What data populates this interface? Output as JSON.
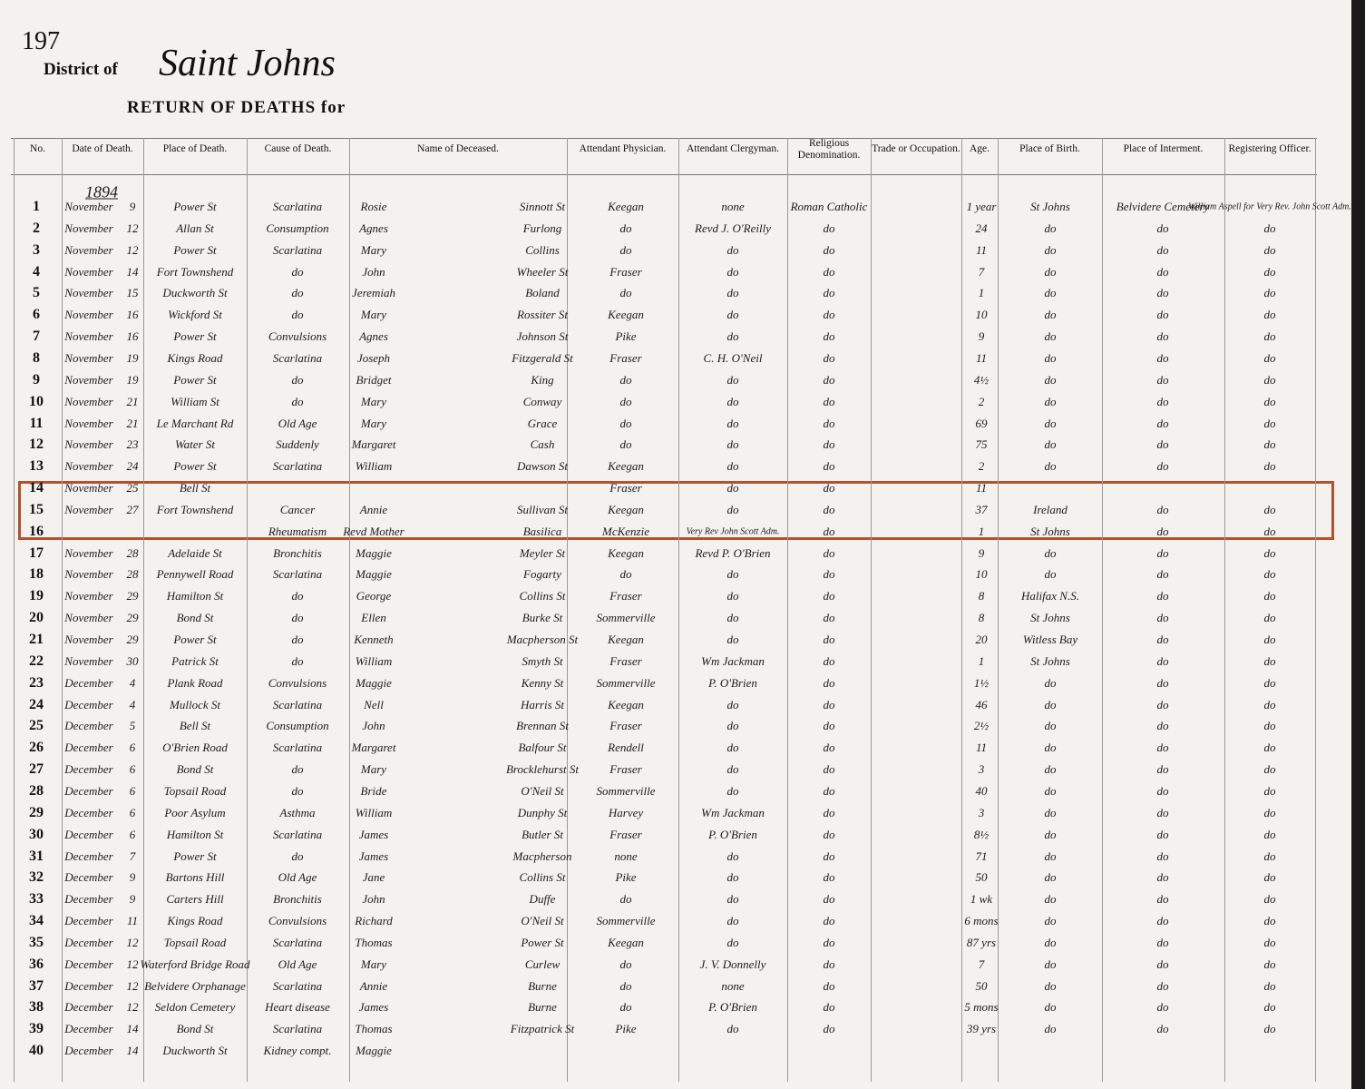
{
  "header": {
    "page_number": "197",
    "district_label": "District of",
    "district": "Saint Johns",
    "title": "RETURN OF DEATHS for"
  },
  "table": {
    "columns": [
      "No.",
      "Date of Death.",
      "Place of Death.",
      "Cause of Death.",
      "Name of Deceased.",
      "Attendant Physician.",
      "Attendant Clergyman.",
      "Religious Denomination.",
      "Trade or Occupation.",
      "Age.",
      "Place of Birth.",
      "Place of Interment.",
      "Registering Officer."
    ],
    "year": "1894",
    "rows": [
      [
        "1",
        "November",
        "9",
        "Power St",
        "Scarlatina",
        "Rosie",
        "Sinnott St",
        "Keegan",
        "none",
        "Roman Catholic",
        null,
        "1 year",
        "St Johns",
        "Belvidere Cemetery",
        "William Aspell for Very Rev. John Scott Adm."
      ],
      [
        "2",
        "November",
        "12",
        "Allan St",
        "Consumption",
        "Agnes",
        "Furlong",
        "do",
        "Revd J. O'Reilly",
        "do",
        null,
        "24",
        "do",
        "do",
        "do"
      ],
      [
        "3",
        "November",
        "12",
        "Power St",
        "Scarlatina",
        "Mary",
        "Collins",
        "do",
        "do",
        "do",
        null,
        "11",
        "do",
        "do",
        "do"
      ],
      [
        "4",
        "November",
        "14",
        "Fort Townshend",
        "do",
        "John",
        "Wheeler St",
        "Fraser",
        "do",
        "do",
        null,
        "7",
        "do",
        "do",
        "do"
      ],
      [
        "5",
        "November",
        "15",
        "Duckworth St",
        "do",
        "Jeremiah",
        "Boland",
        "do",
        "do",
        "do",
        null,
        "1",
        "do",
        "do",
        "do"
      ],
      [
        "6",
        "November",
        "16",
        "Wickford St",
        "do",
        "Mary",
        "Rossiter St",
        "Keegan",
        "do",
        "do",
        null,
        "10",
        "do",
        "do",
        "do"
      ],
      [
        "7",
        "November",
        "16",
        "Power St",
        "Convulsions",
        "Agnes",
        "Johnson St",
        "Pike",
        "do",
        "do",
        null,
        "9",
        "do",
        "do",
        "do"
      ],
      [
        "8",
        "November",
        "19",
        "Kings Road",
        "Scarlatina",
        "Joseph",
        "Fitzgerald St",
        "Fraser",
        "C. H. O'Neil",
        "do",
        null,
        "11",
        "do",
        "do",
        "do"
      ],
      [
        "9",
        "November",
        "19",
        "Power St",
        "do",
        "Bridget",
        "King",
        "do",
        "do",
        "do",
        null,
        "4½",
        "do",
        "do",
        "do"
      ],
      [
        "10",
        "November",
        "21",
        "William St",
        "do",
        "Mary",
        "Conway",
        "do",
        "do",
        "do",
        null,
        "2",
        "do",
        "do",
        "do"
      ],
      [
        "11",
        "November",
        "21",
        "Le Marchant Rd",
        "Old Age",
        "Mary",
        "Grace",
        "do",
        "do",
        "do",
        null,
        "69",
        "do",
        "do",
        "do"
      ],
      [
        "12",
        "November",
        "23",
        "Water St",
        "Suddenly",
        "Margaret",
        "Cash",
        "do",
        "do",
        "do",
        null,
        "75",
        "do",
        "do",
        "do"
      ],
      [
        "13",
        "November",
        "24",
        "Power St",
        "Scarlatina",
        "William",
        "Dawson St",
        "Keegan",
        "do",
        "do",
        null,
        "2",
        "do",
        "do",
        "do"
      ],
      [
        "14",
        "November",
        "25",
        "Bell St",
        null,
        null,
        null,
        "Fraser",
        "do",
        "do",
        null,
        "11",
        null,
        null,
        null
      ],
      [
        "15",
        "November",
        "27",
        "Fort Townshend",
        "Cancer",
        "Annie",
        "Sullivan St",
        "Keegan",
        "do",
        "do",
        null,
        "37",
        "Ireland",
        "do",
        "do"
      ],
      [
        "16",
        null,
        null,
        null,
        "Rheumatism",
        "Revd Mother",
        "Basilica",
        "McKenzie",
        "Very Rev John Scott Adm.",
        "do",
        null,
        "1",
        "St Johns",
        "do",
        "do"
      ],
      [
        "17",
        "November",
        "28",
        "Adelaide St",
        "Bronchitis",
        "Maggie",
        "Meyler St",
        "Keegan",
        "Revd P. O'Brien",
        "do",
        null,
        "9",
        "do",
        "do",
        "do"
      ],
      [
        "18",
        "November",
        "28",
        "Pennywell Road",
        "Scarlatina",
        "Maggie",
        "Fogarty",
        "do",
        "do",
        "do",
        null,
        "10",
        "do",
        "do",
        "do"
      ],
      [
        "19",
        "November",
        "29",
        "Hamilton St",
        "do",
        "George",
        "Collins St",
        "Fraser",
        "do",
        "do",
        null,
        "8",
        "Halifax N.S.",
        "do",
        "do"
      ],
      [
        "20",
        "November",
        "29",
        "Bond St",
        "do",
        "Ellen",
        "Burke St",
        "Sommerville",
        "do",
        "do",
        null,
        "8",
        "St Johns",
        "do",
        "do"
      ],
      [
        "21",
        "November",
        "29",
        "Power St",
        "do",
        "Kenneth",
        "Macpherson St",
        "Keegan",
        "do",
        "do",
        null,
        "20",
        "Witless Bay",
        "do",
        "do"
      ],
      [
        "22",
        "November",
        "30",
        "Patrick St",
        "do",
        "William",
        "Smyth St",
        "Fraser",
        "Wm Jackman",
        "do",
        null,
        "1",
        "St Johns",
        "do",
        "do"
      ],
      [
        "23",
        "December",
        "4",
        "Plank Road",
        "Convulsions",
        "Maggie",
        "Kenny St",
        "Sommerville",
        "P. O'Brien",
        "do",
        null,
        "1½",
        "do",
        "do",
        "do"
      ],
      [
        "24",
        "December",
        "4",
        "Mullock St",
        "Scarlatina",
        "Nell",
        "Harris St",
        "Keegan",
        "do",
        "do",
        null,
        "46",
        "do",
        "do",
        "do"
      ],
      [
        "25",
        "December",
        "5",
        "Bell St",
        "Consumption",
        "John",
        "Brennan St",
        "Fraser",
        "do",
        "do",
        null,
        "2½",
        "do",
        "do",
        "do"
      ],
      [
        "26",
        "December",
        "6",
        "O'Brien Road",
        "Scarlatina",
        "Margaret",
        "Balfour St",
        "Rendell",
        "do",
        "do",
        null,
        "11",
        "do",
        "do",
        "do"
      ],
      [
        "27",
        "December",
        "6",
        "Bond St",
        "do",
        "Mary",
        "Brocklehurst St",
        "Fraser",
        "do",
        "do",
        null,
        "3",
        "do",
        "do",
        "do"
      ],
      [
        "28",
        "December",
        "6",
        "Topsail Road",
        "do",
        "Bride",
        "O'Neil St",
        "Sommerville",
        "do",
        "do",
        null,
        "40",
        "do",
        "do",
        "do"
      ],
      [
        "29",
        "December",
        "6",
        "Poor Asylum",
        "Asthma",
        "William",
        "Dunphy St",
        "Harvey",
        "Wm Jackman",
        "do",
        null,
        "3",
        "do",
        "do",
        "do"
      ],
      [
        "30",
        "December",
        "6",
        "Hamilton St",
        "Scarlatina",
        "James",
        "Butler St",
        "Fraser",
        "P. O'Brien",
        "do",
        null,
        "8½",
        "do",
        "do",
        "do"
      ],
      [
        "31",
        "December",
        "7",
        "Power St",
        "do",
        "James",
        "Macpherson",
        "none",
        "do",
        "do",
        null,
        "71",
        "do",
        "do",
        "do"
      ],
      [
        "32",
        "December",
        "9",
        "Bartons Hill",
        "Old Age",
        "Jane",
        "Collins St",
        "Pike",
        "do",
        "do",
        null,
        "50",
        "do",
        "do",
        "do"
      ],
      [
        "33",
        "December",
        "9",
        "Carters Hill",
        "Bronchitis",
        "John",
        "Duffe",
        "do",
        "do",
        "do",
        null,
        "1 wk",
        "do",
        "do",
        "do"
      ],
      [
        "34",
        "December",
        "11",
        "Kings Road",
        "Convulsions",
        "Richard",
        "O'Neil St",
        "Sommerville",
        "do",
        "do",
        null,
        "6 mons",
        "do",
        "do",
        "do"
      ],
      [
        "35",
        "December",
        "12",
        "Topsail Road",
        "Scarlatina",
        "Thomas",
        "Power St",
        "Keegan",
        "do",
        "do",
        null,
        "87 yrs",
        "do",
        "do",
        "do"
      ],
      [
        "36",
        "December",
        "12",
        "Waterford Bridge Road",
        "Old Age",
        "Mary",
        "Curlew",
        "do",
        "J. V. Donnelly",
        "do",
        null,
        "7",
        "do",
        "do",
        "do"
      ],
      [
        "37",
        "December",
        "12",
        "Belvidere Orphanage",
        "Scarlatina",
        "Annie",
        "Burne",
        "do",
        "none",
        "do",
        null,
        "50",
        "do",
        "do",
        "do"
      ],
      [
        "38",
        "December",
        "12",
        "Seldon Cemetery",
        "Heart disease",
        "James",
        "Burne",
        "do",
        "P. O'Brien",
        "do",
        null,
        "5 mons",
        "do",
        "do",
        "do"
      ],
      [
        "39",
        "December",
        "14",
        "Bond St",
        "Scarlatina",
        "Thomas",
        "Fitzpatrick St",
        "Pike",
        "do",
        "do",
        null,
        "39 yrs",
        "do",
        "do",
        "do"
      ],
      [
        "40",
        "December",
        "14",
        "Duckworth St",
        "Kidney compt.",
        "Maggie",
        null,
        null,
        null,
        null,
        null,
        null,
        null,
        null,
        null
      ]
    ]
  }
}
